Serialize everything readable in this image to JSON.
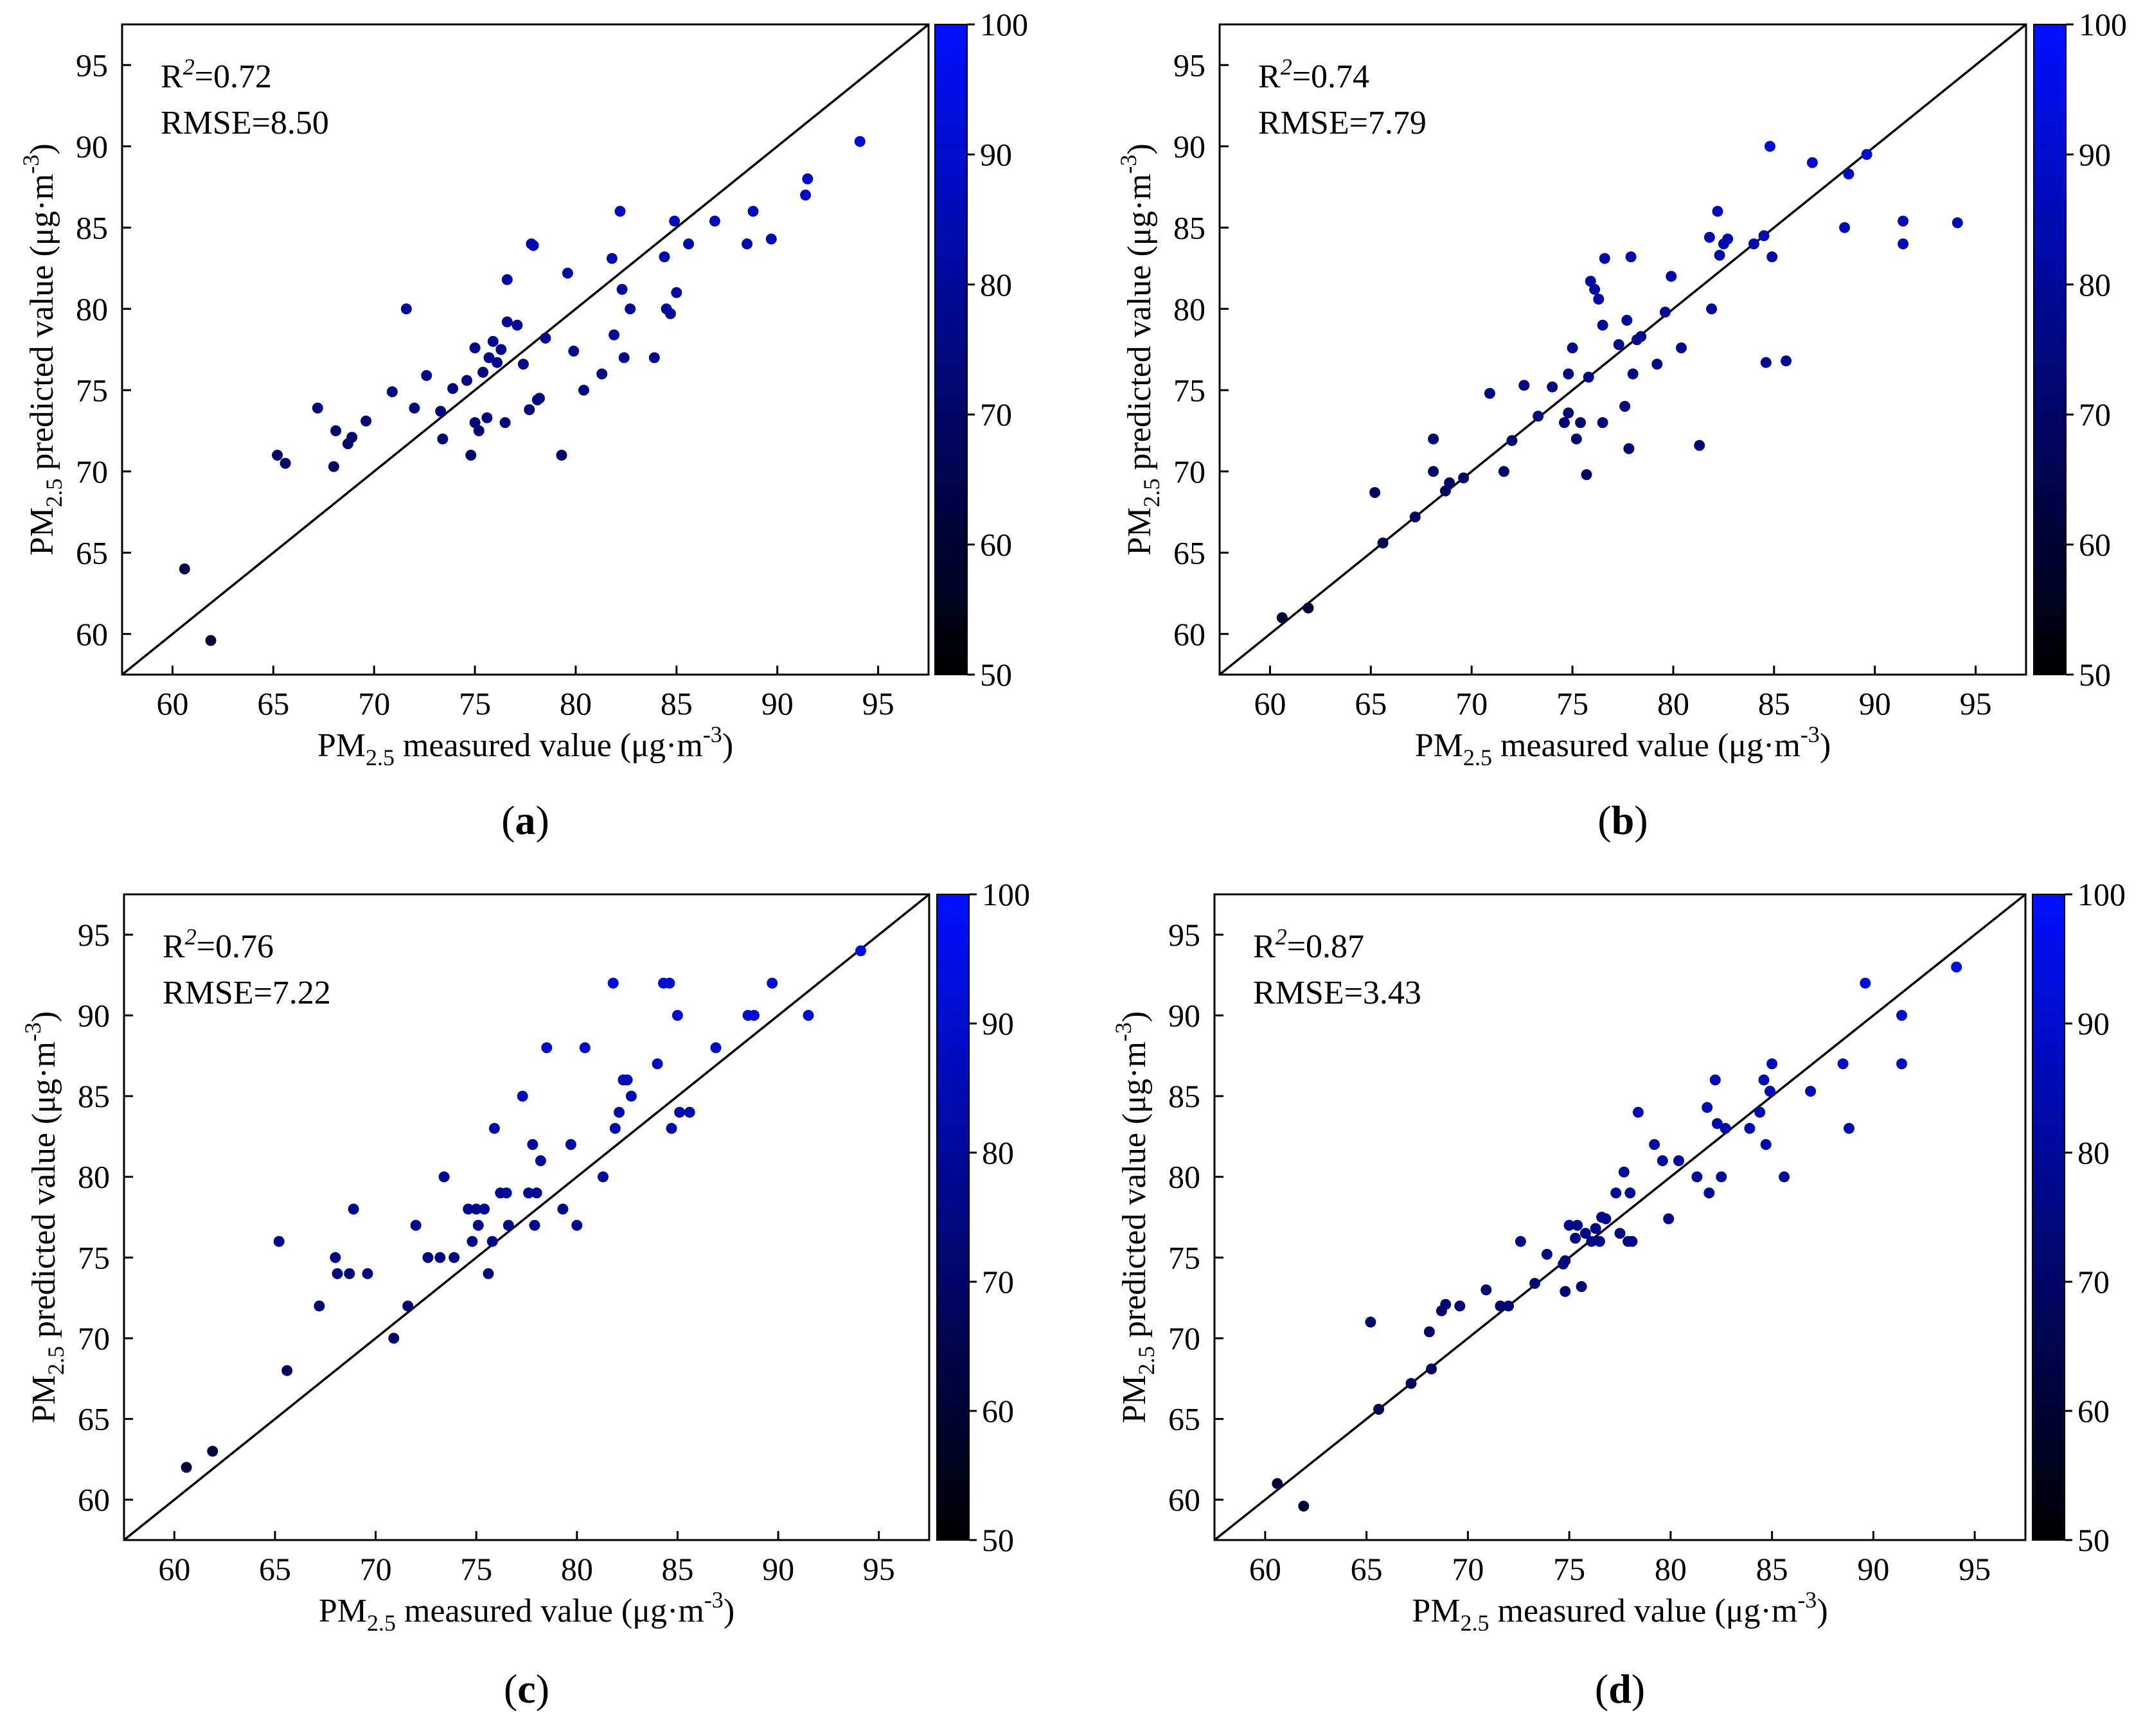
{
  "colorbar": {
    "min": 50,
    "max": 100,
    "ticks": [
      "50",
      "60",
      "70",
      "80",
      "90",
      "100"
    ],
    "color_low": "#000000",
    "color_high": "#0010ff"
  },
  "chart_data": [
    {
      "type": "scatter",
      "panel_label": "a",
      "stats": {
        "r2_label": "R",
        "r2_value": "=0.72",
        "rmse_text": "RMSE=8.50"
      },
      "xlabel": {
        "pre": "PM",
        "sub": "2.5",
        "post": " measured value (μg·m",
        "sup": "-3",
        "close": ")"
      },
      "ylabel": {
        "pre": "PM",
        "sub": "2.5",
        "post": " predicted value (μg·m",
        "sup": "-3",
        "close": ")"
      },
      "xlim": [
        57.5,
        97.5
      ],
      "ylim": [
        57.5,
        97.5
      ],
      "xticks": [
        60,
        65,
        70,
        75,
        80,
        85,
        90,
        95
      ],
      "yticks": [
        60,
        65,
        70,
        75,
        80,
        85,
        90,
        95
      ],
      "reference_line": "y = x",
      "points": [
        [
          60.6,
          64.0
        ],
        [
          61.9,
          59.6
        ],
        [
          65.2,
          71.0
        ],
        [
          65.6,
          70.5
        ],
        [
          67.2,
          73.9
        ],
        [
          68.0,
          70.3
        ],
        [
          68.1,
          72.5
        ],
        [
          68.7,
          71.7
        ],
        [
          68.9,
          72.1
        ],
        [
          69.6,
          73.1
        ],
        [
          70.9,
          74.9
        ],
        [
          71.6,
          80.0
        ],
        [
          72.0,
          73.9
        ],
        [
          72.6,
          75.9
        ],
        [
          73.3,
          73.7
        ],
        [
          73.4,
          72.0
        ],
        [
          73.9,
          75.1
        ],
        [
          74.6,
          75.6
        ],
        [
          74.8,
          71.0
        ],
        [
          75.0,
          73.0
        ],
        [
          75.0,
          77.6
        ],
        [
          75.2,
          72.5
        ],
        [
          75.4,
          76.1
        ],
        [
          75.6,
          73.3
        ],
        [
          75.7,
          77.0
        ],
        [
          75.9,
          78.0
        ],
        [
          76.1,
          76.7
        ],
        [
          76.3,
          77.5
        ],
        [
          76.5,
          73.0
        ],
        [
          76.6,
          79.2
        ],
        [
          76.6,
          81.8
        ],
        [
          77.1,
          79.0
        ],
        [
          77.4,
          76.6
        ],
        [
          77.7,
          73.8
        ],
        [
          77.8,
          84.0
        ],
        [
          77.9,
          83.9
        ],
        [
          78.1,
          74.4
        ],
        [
          78.2,
          74.5
        ],
        [
          78.5,
          78.2
        ],
        [
          79.3,
          71.0
        ],
        [
          79.6,
          82.2
        ],
        [
          79.9,
          77.4
        ],
        [
          80.4,
          75.0
        ],
        [
          81.3,
          76.0
        ],
        [
          81.8,
          83.1
        ],
        [
          81.9,
          78.4
        ],
        [
          82.2,
          86.0
        ],
        [
          82.3,
          81.2
        ],
        [
          82.4,
          77.0
        ],
        [
          82.7,
          80.0
        ],
        [
          83.9,
          77.0
        ],
        [
          84.4,
          83.2
        ],
        [
          84.5,
          80.0
        ],
        [
          84.7,
          79.7
        ],
        [
          84.9,
          85.4
        ],
        [
          85.0,
          81.0
        ],
        [
          85.6,
          84.0
        ],
        [
          86.9,
          85.4
        ],
        [
          88.5,
          84.0
        ],
        [
          88.8,
          86.0
        ],
        [
          89.7,
          84.3
        ],
        [
          91.4,
          87.0
        ],
        [
          91.5,
          88.0
        ],
        [
          94.1,
          90.3
        ]
      ]
    },
    {
      "type": "scatter",
      "panel_label": "b",
      "stats": {
        "r2_label": "R",
        "r2_value": "=0.74",
        "rmse_text": "RMSE=7.79"
      },
      "xlabel": {
        "pre": "PM",
        "sub": "2.5",
        "post": " measured value (μg·m",
        "sup": "-3",
        "close": ")"
      },
      "ylabel": {
        "pre": "PM",
        "sub": "2.5",
        "post": " predicted value (μg·m",
        "sup": "-3",
        "close": ")"
      },
      "xlim": [
        57.5,
        97.5
      ],
      "ylim": [
        57.5,
        97.5
      ],
      "xticks": [
        60,
        65,
        70,
        75,
        80,
        85,
        90,
        95
      ],
      "yticks": [
        60,
        65,
        70,
        75,
        80,
        85,
        90,
        95
      ],
      "reference_line": "y = x",
      "points": [
        [
          60.6,
          61.0
        ],
        [
          61.9,
          61.6
        ],
        [
          65.2,
          68.7
        ],
        [
          65.6,
          65.6
        ],
        [
          67.2,
          67.2
        ],
        [
          68.1,
          72.0
        ],
        [
          68.1,
          70.0
        ],
        [
          68.7,
          68.8
        ],
        [
          68.9,
          69.3
        ],
        [
          69.6,
          69.6
        ],
        [
          70.9,
          74.8
        ],
        [
          71.6,
          70.0
        ],
        [
          72.0,
          71.9
        ],
        [
          72.6,
          75.3
        ],
        [
          73.3,
          73.4
        ],
        [
          74.0,
          75.2
        ],
        [
          74.6,
          73.0
        ],
        [
          74.8,
          76.0
        ],
        [
          74.8,
          73.6
        ],
        [
          75.0,
          77.6
        ],
        [
          75.2,
          72.0
        ],
        [
          75.4,
          73.0
        ],
        [
          75.7,
          69.8
        ],
        [
          75.8,
          75.8
        ],
        [
          75.9,
          81.7
        ],
        [
          76.1,
          81.2
        ],
        [
          76.3,
          80.6
        ],
        [
          76.5,
          79.0
        ],
        [
          76.5,
          73.0
        ],
        [
          76.6,
          83.1
        ],
        [
          77.3,
          77.8
        ],
        [
          77.6,
          74.0
        ],
        [
          77.7,
          79.3
        ],
        [
          77.8,
          71.4
        ],
        [
          77.9,
          83.2
        ],
        [
          78.0,
          76.0
        ],
        [
          78.2,
          78.1
        ],
        [
          78.4,
          78.3
        ],
        [
          79.2,
          76.6
        ],
        [
          79.6,
          79.8
        ],
        [
          79.9,
          82.0
        ],
        [
          80.4,
          77.6
        ],
        [
          81.3,
          71.6
        ],
        [
          81.8,
          84.4
        ],
        [
          81.9,
          80.0
        ],
        [
          82.2,
          86.0
        ],
        [
          82.3,
          83.3
        ],
        [
          82.5,
          84.0
        ],
        [
          82.7,
          84.3
        ],
        [
          84.0,
          84.0
        ],
        [
          84.5,
          84.5
        ],
        [
          84.6,
          76.7
        ],
        [
          84.8,
          90.0
        ],
        [
          84.9,
          83.2
        ],
        [
          85.6,
          76.8
        ],
        [
          86.9,
          89.0
        ],
        [
          88.5,
          85.0
        ],
        [
          88.7,
          88.3
        ],
        [
          89.6,
          89.5
        ],
        [
          91.4,
          85.4
        ],
        [
          91.4,
          84.0
        ],
        [
          94.1,
          85.3
        ]
      ]
    },
    {
      "type": "scatter",
      "panel_label": "c",
      "stats": {
        "r2_label": "R",
        "r2_value": "=0.76",
        "rmse_text": "RMSE=7.22"
      },
      "xlabel": {
        "pre": "PM",
        "sub": "2.5",
        "post": " measured value (μg·m",
        "sup": "-3",
        "close": ")"
      },
      "ylabel": {
        "pre": "PM",
        "sub": "2.5",
        "post": " predicted value (μg·m",
        "sup": "-3",
        "close": ")"
      },
      "xlim": [
        57.5,
        97.5
      ],
      "ylim": [
        57.5,
        97.5
      ],
      "xticks": [
        60,
        65,
        70,
        75,
        80,
        85,
        90,
        95
      ],
      "yticks": [
        60,
        65,
        70,
        75,
        80,
        85,
        90,
        95
      ],
      "reference_line": "y = x",
      "points": [
        [
          60.6,
          62.0
        ],
        [
          61.9,
          63.0
        ],
        [
          65.2,
          76.0
        ],
        [
          65.6,
          68.0
        ],
        [
          67.2,
          72.0
        ],
        [
          68.0,
          75.0
        ],
        [
          68.1,
          74.0
        ],
        [
          68.7,
          74.0
        ],
        [
          68.9,
          78.0
        ],
        [
          69.6,
          74.0
        ],
        [
          70.9,
          70.0
        ],
        [
          71.6,
          72.0
        ],
        [
          72.0,
          77.0
        ],
        [
          72.6,
          75.0
        ],
        [
          73.2,
          75.0
        ],
        [
          73.4,
          80.0
        ],
        [
          73.9,
          75.0
        ],
        [
          74.6,
          78.0
        ],
        [
          74.8,
          76.0
        ],
        [
          75.0,
          78.0
        ],
        [
          75.1,
          77.0
        ],
        [
          75.4,
          78.0
        ],
        [
          75.6,
          74.0
        ],
        [
          75.8,
          76.0
        ],
        [
          75.9,
          83.0
        ],
        [
          76.2,
          79.0
        ],
        [
          76.5,
          79.0
        ],
        [
          76.6,
          77.0
        ],
        [
          77.3,
          85.0
        ],
        [
          77.6,
          79.0
        ],
        [
          77.8,
          82.0
        ],
        [
          77.9,
          77.0
        ],
        [
          78.0,
          79.0
        ],
        [
          78.2,
          81.0
        ],
        [
          78.5,
          88.0
        ],
        [
          79.3,
          78.0
        ],
        [
          79.7,
          82.0
        ],
        [
          80.0,
          77.0
        ],
        [
          80.4,
          88.0
        ],
        [
          81.3,
          80.0
        ],
        [
          81.8,
          92.0
        ],
        [
          81.9,
          83.0
        ],
        [
          82.1,
          84.0
        ],
        [
          82.3,
          86.0
        ],
        [
          82.5,
          86.0
        ],
        [
          82.7,
          85.0
        ],
        [
          84.0,
          87.0
        ],
        [
          84.3,
          92.0
        ],
        [
          84.6,
          92.0
        ],
        [
          84.7,
          83.0
        ],
        [
          85.0,
          90.0
        ],
        [
          85.1,
          84.0
        ],
        [
          85.6,
          84.0
        ],
        [
          86.9,
          88.0
        ],
        [
          88.5,
          90.0
        ],
        [
          88.8,
          90.0
        ],
        [
          89.7,
          92.0
        ],
        [
          91.5,
          90.0
        ],
        [
          94.1,
          94.0
        ]
      ]
    },
    {
      "type": "scatter",
      "panel_label": "d",
      "stats": {
        "r2_label": "R",
        "r2_value": "=0.87",
        "rmse_text": "RMSE=3.43"
      },
      "xlabel": {
        "pre": "PM",
        "sub": "2.5",
        "post": " measured value (μg·m",
        "sup": "-3",
        "close": ")"
      },
      "ylabel": {
        "pre": "PM",
        "sub": "2.5",
        "post": " predicted value (μg·m",
        "sup": "-3",
        "close": ")"
      },
      "xlim": [
        57.5,
        97.5
      ],
      "ylim": [
        57.5,
        97.5
      ],
      "xticks": [
        60,
        65,
        70,
        75,
        80,
        85,
        90,
        95
      ],
      "yticks": [
        60,
        65,
        70,
        75,
        80,
        85,
        90,
        95
      ],
      "reference_line": "y = x",
      "points": [
        [
          60.6,
          61.0
        ],
        [
          61.9,
          59.6
        ],
        [
          65.2,
          71.0
        ],
        [
          65.6,
          65.6
        ],
        [
          67.2,
          67.2
        ],
        [
          68.1,
          70.4
        ],
        [
          68.2,
          68.1
        ],
        [
          68.7,
          71.7
        ],
        [
          68.9,
          72.1
        ],
        [
          69.6,
          72.0
        ],
        [
          70.9,
          73.0
        ],
        [
          71.6,
          72.0
        ],
        [
          72.0,
          72.0
        ],
        [
          72.6,
          76.0
        ],
        [
          73.3,
          73.4
        ],
        [
          73.9,
          75.2
        ],
        [
          74.7,
          74.6
        ],
        [
          74.8,
          72.9
        ],
        [
          74.8,
          74.8
        ],
        [
          75.0,
          77.0
        ],
        [
          75.3,
          76.2
        ],
        [
          75.4,
          77.0
        ],
        [
          75.6,
          73.2
        ],
        [
          75.8,
          76.5
        ],
        [
          76.1,
          76.0
        ],
        [
          76.3,
          76.8
        ],
        [
          76.5,
          76.0
        ],
        [
          76.6,
          77.5
        ],
        [
          76.8,
          77.4
        ],
        [
          77.3,
          79.0
        ],
        [
          77.5,
          76.5
        ],
        [
          77.7,
          80.3
        ],
        [
          77.9,
          76.0
        ],
        [
          78.0,
          79.0
        ],
        [
          78.1,
          76.0
        ],
        [
          78.4,
          84.0
        ],
        [
          79.2,
          82.0
        ],
        [
          79.6,
          81.0
        ],
        [
          79.9,
          77.4
        ],
        [
          80.4,
          81.0
        ],
        [
          81.3,
          80.0
        ],
        [
          81.8,
          84.3
        ],
        [
          81.9,
          79.0
        ],
        [
          82.2,
          86.0
        ],
        [
          82.3,
          83.3
        ],
        [
          82.5,
          80.0
        ],
        [
          82.7,
          83.0
        ],
        [
          83.9,
          83.0
        ],
        [
          84.4,
          84.0
        ],
        [
          84.6,
          86.0
        ],
        [
          84.7,
          82.0
        ],
        [
          84.9,
          85.3
        ],
        [
          85.0,
          87.0
        ],
        [
          85.6,
          80.0
        ],
        [
          86.9,
          85.3
        ],
        [
          88.5,
          87.0
        ],
        [
          88.8,
          83.0
        ],
        [
          89.6,
          92.0
        ],
        [
          91.4,
          90.0
        ],
        [
          91.4,
          87.0
        ],
        [
          94.1,
          93.0
        ]
      ]
    }
  ]
}
